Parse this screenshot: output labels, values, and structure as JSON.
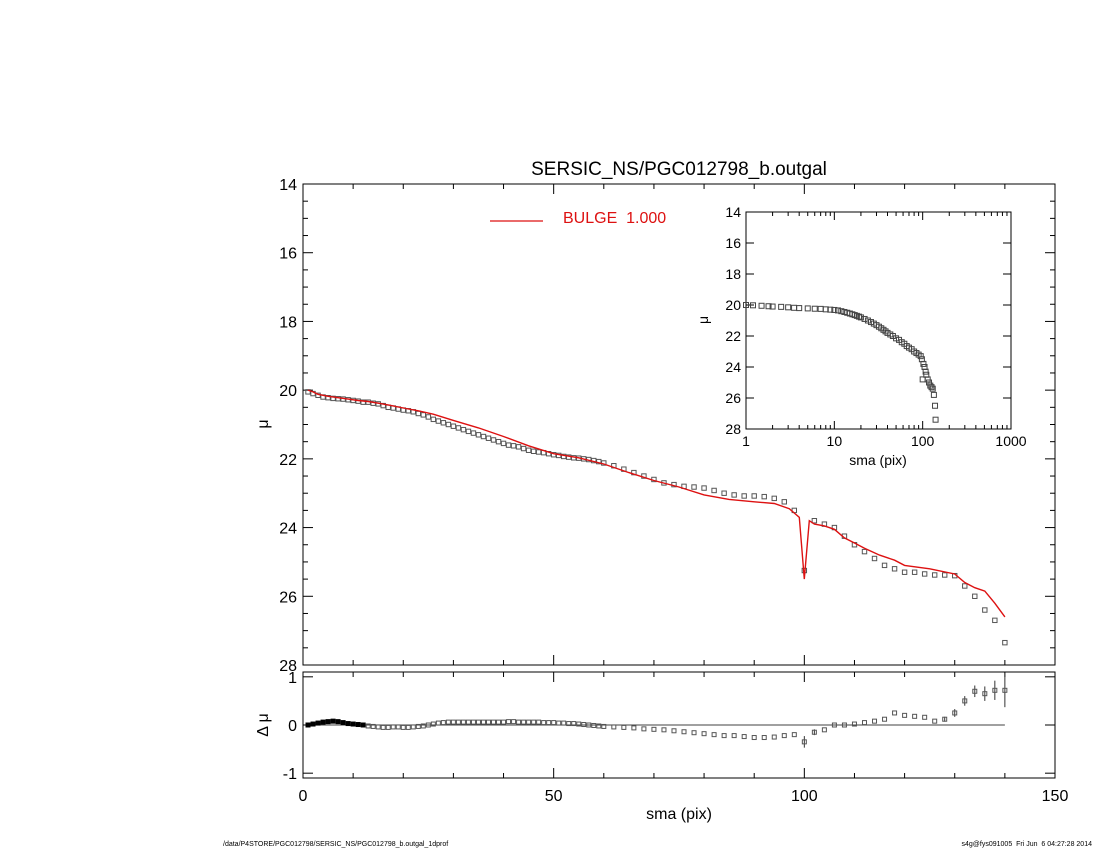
{
  "colors": {
    "model": "#dd1111",
    "data": "#555555",
    "axis": "#000000",
    "background": "#ffffff"
  },
  "footer": {
    "left": "/data/P4STORE/PGC012798/SERSIC_NS/PGC012798_b.outgal_1dprof",
    "right": "s4g@fys091005  Fri Jun  6 04:27:28 2014"
  },
  "chart_data": [
    {
      "id": "main",
      "type": "scatter",
      "title": "SERSIC_NS/PGC012798_b.outgal",
      "xlabel": "",
      "ylabel": "μ",
      "xlim": [
        0,
        150
      ],
      "ylim": [
        28,
        14
      ],
      "yreversed": true,
      "x_ticks": [
        0,
        50,
        100,
        150
      ],
      "x_tick_labels": [
        "",
        "",
        "",
        ""
      ],
      "y_ticks": [
        14,
        16,
        18,
        20,
        22,
        24,
        26,
        28
      ],
      "y_tick_labels": [
        "14",
        "16",
        "18",
        "20",
        "22",
        "24",
        "26",
        "28"
      ],
      "grid": false,
      "legend": {
        "placement": "top-center",
        "entries": [
          {
            "name": "BULGE  1.000",
            "color": "#dd1111",
            "style": "line"
          }
        ]
      },
      "series": [
        {
          "name": "data",
          "style": "square-markers",
          "x": [
            1,
            2,
            3,
            4,
            5,
            6,
            7,
            8,
            9,
            10,
            11,
            12,
            13,
            14,
            15,
            16,
            17,
            18,
            19,
            20,
            21,
            22,
            23,
            24,
            25,
            26,
            27,
            28,
            29,
            30,
            31,
            32,
            33,
            34,
            35,
            36,
            37,
            38,
            39,
            40,
            41,
            42,
            43,
            44,
            45,
            46,
            47,
            48,
            49,
            50,
            51,
            52,
            53,
            54,
            55,
            56,
            57,
            58,
            59,
            60,
            62,
            64,
            66,
            68,
            70,
            72,
            74,
            76,
            78,
            80,
            82,
            84,
            86,
            88,
            90,
            92,
            94,
            96,
            98,
            100,
            102,
            104,
            106,
            108,
            110,
            112,
            114,
            116,
            118,
            120,
            122,
            124,
            126,
            128,
            130,
            132,
            134,
            136,
            138,
            140
          ],
          "values": [
            20.05,
            20.1,
            20.15,
            20.2,
            20.22,
            20.24,
            20.25,
            20.26,
            20.28,
            20.3,
            20.32,
            20.35,
            20.35,
            20.38,
            20.4,
            20.45,
            20.5,
            20.52,
            20.55,
            20.58,
            20.6,
            20.63,
            20.68,
            20.72,
            20.78,
            20.85,
            20.9,
            20.95,
            21.0,
            21.05,
            21.1,
            21.15,
            21.2,
            21.25,
            21.3,
            21.35,
            21.4,
            21.45,
            21.5,
            21.55,
            21.6,
            21.62,
            21.65,
            21.7,
            21.75,
            21.78,
            21.8,
            21.82,
            21.85,
            21.88,
            21.9,
            21.93,
            21.95,
            21.97,
            21.98,
            22.0,
            22.02,
            22.05,
            22.08,
            22.12,
            22.2,
            22.3,
            22.4,
            22.5,
            22.6,
            22.7,
            22.75,
            22.8,
            22.82,
            22.85,
            22.92,
            23.0,
            23.05,
            23.08,
            23.08,
            23.1,
            23.15,
            23.25,
            23.5,
            25.25,
            23.8,
            23.9,
            24.0,
            24.25,
            24.5,
            24.7,
            24.9,
            25.1,
            25.2,
            25.3,
            25.3,
            25.35,
            25.38,
            25.38,
            25.4,
            25.7,
            26.0,
            26.4,
            26.7,
            27.35
          ]
        },
        {
          "name": "BULGE  1.000",
          "style": "line",
          "x": [
            1,
            2,
            3,
            5,
            7,
            9,
            11,
            13,
            15,
            17,
            20,
            23,
            26,
            30,
            35,
            40,
            45,
            50,
            55,
            60,
            65,
            70,
            75,
            80,
            85,
            90,
            94,
            97,
            99,
            100,
            101,
            102,
            104,
            106,
            108,
            110,
            112,
            115,
            118,
            120,
            125,
            130,
            132,
            134,
            136,
            138,
            140
          ],
          "values": [
            20.0,
            20.05,
            20.12,
            20.18,
            20.22,
            20.26,
            20.3,
            20.33,
            20.38,
            20.43,
            20.52,
            20.6,
            20.7,
            20.88,
            21.1,
            21.35,
            21.62,
            21.85,
            21.97,
            22.15,
            22.4,
            22.63,
            22.82,
            23.05,
            23.18,
            23.25,
            23.3,
            23.45,
            23.7,
            25.5,
            23.8,
            23.9,
            23.95,
            24.05,
            24.3,
            24.45,
            24.6,
            24.8,
            24.95,
            25.1,
            25.2,
            25.35,
            25.6,
            25.75,
            25.85,
            26.2,
            26.6
          ]
        }
      ]
    },
    {
      "id": "residual",
      "type": "scatter",
      "xlabel": "sma (pix)",
      "ylabel": "Δ μ",
      "xlim": [
        0,
        150
      ],
      "ylim": [
        -1.1,
        1.1
      ],
      "x_ticks": [
        0,
        50,
        100,
        150
      ],
      "x_tick_labels": [
        "0",
        "50",
        "100",
        "150"
      ],
      "y_ticks": [
        -1,
        0,
        1
      ],
      "y_tick_labels": [
        "-1",
        "0",
        "1"
      ],
      "grid": false,
      "series": [
        {
          "name": "residuals",
          "style": "square-markers-with-errorbars",
          "x": [
            1,
            2,
            3,
            4,
            5,
            6,
            7,
            8,
            9,
            10,
            11,
            12,
            13,
            14,
            15,
            16,
            17,
            18,
            19,
            20,
            21,
            22,
            23,
            24,
            25,
            26,
            27,
            28,
            29,
            30,
            31,
            32,
            33,
            34,
            35,
            36,
            37,
            38,
            39,
            40,
            41,
            42,
            43,
            44,
            45,
            46,
            47,
            48,
            49,
            50,
            51,
            52,
            53,
            54,
            55,
            56,
            57,
            58,
            59,
            60,
            62,
            64,
            66,
            68,
            70,
            72,
            74,
            76,
            78,
            80,
            82,
            84,
            86,
            88,
            90,
            92,
            94,
            96,
            98,
            100,
            102,
            104,
            106,
            108,
            110,
            112,
            114,
            116,
            118,
            120,
            122,
            124,
            126,
            128,
            130,
            132,
            134,
            136,
            138,
            140
          ],
          "values": [
            0.0,
            0.02,
            0.04,
            0.06,
            0.07,
            0.08,
            0.07,
            0.05,
            0.03,
            0.02,
            0.01,
            0.0,
            -0.02,
            -0.03,
            -0.04,
            -0.05,
            -0.05,
            -0.04,
            -0.04,
            -0.05,
            -0.05,
            -0.04,
            -0.03,
            -0.02,
            0.0,
            0.02,
            0.04,
            0.05,
            0.06,
            0.06,
            0.06,
            0.06,
            0.06,
            0.06,
            0.06,
            0.06,
            0.06,
            0.06,
            0.06,
            0.06,
            0.07,
            0.07,
            0.06,
            0.06,
            0.06,
            0.06,
            0.06,
            0.05,
            0.05,
            0.05,
            0.04,
            0.04,
            0.03,
            0.03,
            0.02,
            0.01,
            0.0,
            -0.01,
            -0.02,
            -0.03,
            -0.04,
            -0.05,
            -0.06,
            -0.08,
            -0.09,
            -0.1,
            -0.12,
            -0.14,
            -0.16,
            -0.18,
            -0.2,
            -0.22,
            -0.22,
            -0.24,
            -0.26,
            -0.26,
            -0.25,
            -0.22,
            -0.2,
            -0.35,
            -0.15,
            -0.1,
            0.0,
            0.0,
            0.02,
            0.05,
            0.08,
            0.12,
            0.25,
            0.2,
            0.18,
            0.16,
            0.08,
            0.12,
            0.25,
            0.5,
            0.7,
            0.65,
            0.72,
            0.72
          ],
          "errors": [
            0,
            0,
            0,
            0,
            0,
            0,
            0,
            0,
            0,
            0,
            0,
            0,
            0,
            0,
            0,
            0,
            0,
            0,
            0,
            0,
            0,
            0,
            0,
            0,
            0,
            0,
            0,
            0,
            0,
            0,
            0,
            0,
            0,
            0,
            0,
            0,
            0,
            0,
            0,
            0,
            0,
            0,
            0,
            0,
            0,
            0,
            0,
            0,
            0,
            0,
            0,
            0,
            0,
            0,
            0,
            0,
            0,
            0,
            0,
            0,
            0,
            0,
            0,
            0,
            0,
            0,
            0,
            0,
            0,
            0,
            0,
            0,
            0,
            0,
            0,
            0,
            0,
            0,
            0,
            0.12,
            0.06,
            0,
            0,
            0,
            0,
            0,
            0,
            0,
            0,
            0,
            0,
            0,
            0,
            0.05,
            0.08,
            0.1,
            0.12,
            0.15,
            0.2,
            0.35
          ]
        }
      ],
      "reference_line": 0
    },
    {
      "id": "inset",
      "type": "scatter",
      "xlabel": "sma (pix)",
      "ylabel": "μ",
      "xscale": "log",
      "xlim": [
        1,
        1000
      ],
      "ylim": [
        28,
        14
      ],
      "x_ticks": [
        1,
        10,
        100,
        1000
      ],
      "x_tick_labels": [
        "1",
        "10",
        "100",
        "1000"
      ],
      "y_ticks": [
        14,
        16,
        18,
        20,
        22,
        24,
        26,
        28
      ],
      "y_tick_labels": [
        "14",
        "16",
        "18",
        "20",
        "22",
        "24",
        "26",
        "28"
      ],
      "grid": false,
      "series": [
        {
          "name": "data",
          "style": "square-markers",
          "x": [
            1,
            1.2,
            1.5,
            1.8,
            2,
            2.5,
            3,
            3.5,
            4,
            5,
            6,
            7,
            8,
            9,
            10,
            11,
            12,
            13,
            14,
            15,
            16,
            17,
            18,
            19,
            20,
            22,
            24,
            26,
            28,
            30,
            32,
            34,
            36,
            38,
            40,
            43,
            46,
            50,
            54,
            58,
            62,
            66,
            70,
            75,
            80,
            85,
            90,
            95,
            98,
            100,
            102,
            105,
            108,
            110,
            114,
            118,
            122,
            126,
            130,
            134,
            138,
            140
          ],
          "values": [
            20.0,
            20.02,
            20.05,
            20.08,
            20.1,
            20.12,
            20.15,
            20.18,
            20.2,
            20.22,
            20.24,
            20.25,
            20.28,
            20.3,
            20.32,
            20.35,
            20.4,
            20.45,
            20.5,
            20.55,
            20.6,
            20.65,
            20.7,
            20.75,
            20.8,
            20.9,
            21.0,
            21.1,
            21.2,
            21.3,
            21.4,
            21.5,
            21.6,
            21.7,
            21.8,
            21.9,
            22.0,
            22.15,
            22.25,
            22.4,
            22.5,
            22.65,
            22.75,
            22.85,
            23.0,
            23.1,
            23.2,
            23.3,
            23.5,
            24.8,
            23.8,
            24.0,
            24.3,
            24.5,
            24.8,
            25.0,
            25.2,
            25.3,
            25.4,
            25.8,
            26.5,
            27.4
          ]
        }
      ]
    }
  ]
}
